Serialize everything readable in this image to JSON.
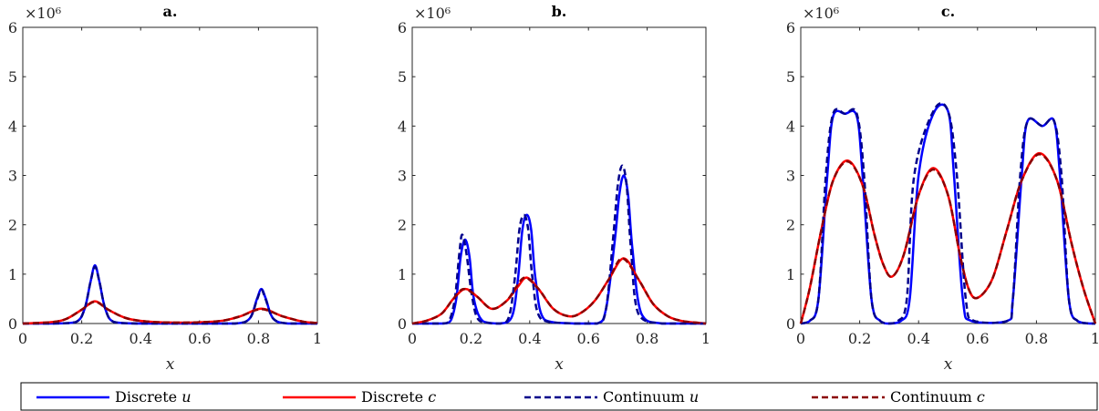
{
  "chart_data": [
    {
      "type": "line",
      "title": "a.",
      "xlabel": "x",
      "ylabel": "",
      "y_exponent": "×10⁶",
      "xlim": [
        0,
        1
      ],
      "ylim": [
        0,
        6000000
      ],
      "xticks": [
        "0",
        "0.2",
        "0.4",
        "0.6",
        "0.8",
        "1"
      ],
      "yticks": [
        "0",
        "1",
        "2",
        "3",
        "4",
        "5",
        "6"
      ],
      "grid": false,
      "series": [
        {
          "name": "Discrete u",
          "color": "#0000ff",
          "dash": "solid",
          "x": [
            0,
            0.1,
            0.18,
            0.21,
            0.23,
            0.245,
            0.26,
            0.28,
            0.31,
            0.4,
            0.6,
            0.72,
            0.77,
            0.795,
            0.81,
            0.825,
            0.85,
            0.9,
            1
          ],
          "y": [
            0,
            0,
            30000,
            300000,
            850000,
            1180000,
            850000,
            300000,
            30000,
            0,
            0,
            0,
            100000,
            500000,
            700000,
            500000,
            100000,
            0,
            0
          ]
        },
        {
          "name": "Discrete c",
          "color": "#ff0000",
          "dash": "solid",
          "x": [
            0,
            0.1,
            0.15,
            0.2,
            0.245,
            0.29,
            0.35,
            0.42,
            0.5,
            0.6,
            0.68,
            0.74,
            0.81,
            0.88,
            0.95,
            1
          ],
          "y": [
            0,
            30000,
            100000,
            280000,
            450000,
            280000,
            110000,
            40000,
            20000,
            25000,
            60000,
            150000,
            300000,
            150000,
            40000,
            10000
          ]
        },
        {
          "name": "Continuum u",
          "color": "#00008b",
          "dash": "dashed",
          "x": [
            0,
            0.1,
            0.18,
            0.21,
            0.23,
            0.245,
            0.26,
            0.28,
            0.31,
            0.4,
            0.6,
            0.72,
            0.77,
            0.795,
            0.81,
            0.825,
            0.85,
            0.9,
            1
          ],
          "y": [
            0,
            0,
            30000,
            300000,
            850000,
            1150000,
            850000,
            300000,
            30000,
            0,
            0,
            0,
            100000,
            480000,
            680000,
            480000,
            100000,
            0,
            0
          ]
        },
        {
          "name": "Continuum c",
          "color": "#8b0000",
          "dash": "dashed",
          "x": [
            0,
            0.1,
            0.15,
            0.2,
            0.245,
            0.29,
            0.35,
            0.42,
            0.5,
            0.6,
            0.68,
            0.74,
            0.81,
            0.88,
            0.95,
            1
          ],
          "y": [
            0,
            30000,
            100000,
            280000,
            440000,
            280000,
            110000,
            40000,
            20000,
            25000,
            60000,
            150000,
            290000,
            150000,
            40000,
            10000
          ]
        }
      ]
    },
    {
      "type": "line",
      "title": "b.",
      "xlabel": "x",
      "ylabel": "",
      "y_exponent": "×10⁶",
      "xlim": [
        0,
        1
      ],
      "ylim": [
        0,
        6000000
      ],
      "xticks": [
        "0",
        "0.2",
        "0.4",
        "0.6",
        "0.8",
        "1"
      ],
      "yticks": [
        "0",
        "1",
        "2",
        "3",
        "4",
        "5",
        "6"
      ],
      "grid": false,
      "series": [
        {
          "name": "Discrete u",
          "color": "#0000ff",
          "dash": "solid",
          "x": [
            0,
            0.1,
            0.13,
            0.15,
            0.165,
            0.18,
            0.195,
            0.21,
            0.24,
            0.3,
            0.34,
            0.36,
            0.375,
            0.39,
            0.405,
            0.42,
            0.45,
            0.55,
            0.63,
            0.66,
            0.69,
            0.705,
            0.72,
            0.735,
            0.75,
            0.78,
            0.85,
            1
          ],
          "y": [
            0,
            0,
            50000,
            500000,
            1350000,
            1700000,
            1350000,
            500000,
            50000,
            0,
            150000,
            900000,
            1900000,
            2200000,
            1900000,
            900000,
            80000,
            0,
            0,
            300000,
            1700000,
            2600000,
            3000000,
            2600000,
            1500000,
            200000,
            0,
            0
          ]
        },
        {
          "name": "Discrete c",
          "color": "#ff0000",
          "dash": "solid",
          "x": [
            0,
            0.05,
            0.1,
            0.14,
            0.18,
            0.22,
            0.27,
            0.32,
            0.36,
            0.39,
            0.43,
            0.48,
            0.53,
            0.57,
            0.62,
            0.67,
            0.72,
            0.77,
            0.82,
            0.87,
            0.92,
            1
          ],
          "y": [
            0,
            60000,
            200000,
            500000,
            700000,
            550000,
            300000,
            450000,
            750000,
            930000,
            700000,
            300000,
            150000,
            200000,
            450000,
            900000,
            1320000,
            900000,
            400000,
            150000,
            50000,
            0
          ]
        },
        {
          "name": "Continuum u",
          "color": "#00008b",
          "dash": "dashed",
          "x": [
            0,
            0.1,
            0.125,
            0.145,
            0.16,
            0.17,
            0.185,
            0.205,
            0.23,
            0.3,
            0.33,
            0.35,
            0.365,
            0.38,
            0.395,
            0.41,
            0.44,
            0.55,
            0.63,
            0.66,
            0.685,
            0.7,
            0.715,
            0.73,
            0.745,
            0.77,
            0.85,
            1
          ],
          "y": [
            0,
            0,
            50000,
            500000,
            1400000,
            1800000,
            1400000,
            500000,
            50000,
            0,
            150000,
            950000,
            1900000,
            2200000,
            1900000,
            900000,
            80000,
            0,
            0,
            300000,
            1800000,
            2800000,
            3200000,
            2800000,
            1500000,
            200000,
            0,
            0
          ]
        },
        {
          "name": "Continuum c",
          "color": "#8b0000",
          "dash": "dashed",
          "x": [
            0,
            0.05,
            0.1,
            0.14,
            0.175,
            0.22,
            0.27,
            0.32,
            0.355,
            0.385,
            0.43,
            0.48,
            0.53,
            0.57,
            0.62,
            0.67,
            0.715,
            0.77,
            0.82,
            0.87,
            0.92,
            1
          ],
          "y": [
            0,
            60000,
            200000,
            500000,
            700000,
            550000,
            300000,
            450000,
            750000,
            930000,
            700000,
            300000,
            150000,
            200000,
            450000,
            900000,
            1320000,
            900000,
            400000,
            150000,
            50000,
            0
          ]
        }
      ]
    },
    {
      "type": "line",
      "title": "c.",
      "xlabel": "x",
      "ylabel": "",
      "y_exponent": "×10⁶",
      "xlim": [
        0,
        1
      ],
      "ylim": [
        0,
        6000000
      ],
      "xticks": [
        "0",
        "0.2",
        "0.4",
        "0.6",
        "0.8",
        "1"
      ],
      "yticks": [
        "0",
        "1",
        "2",
        "3",
        "4",
        "5",
        "6"
      ],
      "grid": false,
      "series": [
        {
          "name": "Discrete u",
          "color": "#0000ff",
          "dash": "solid",
          "x": [
            0,
            0.03,
            0.06,
            0.09,
            0.11,
            0.15,
            0.19,
            0.21,
            0.24,
            0.27,
            0.3,
            0.34,
            0.37,
            0.4,
            0.45,
            0.5,
            0.52,
            0.55,
            0.58,
            0.7,
            0.72,
            0.75,
            0.77,
            0.82,
            0.86,
            0.88,
            0.91,
            0.94,
            0.98,
            1
          ],
          "y": [
            0,
            50000,
            500000,
            3000000,
            4200000,
            4250000,
            4200000,
            3000000,
            500000,
            50000,
            0,
            50000,
            500000,
            3000000,
            4250000,
            4300000,
            3000000,
            500000,
            50000,
            50000,
            500000,
            3000000,
            4100000,
            4000000,
            4100000,
            3000000,
            500000,
            50000,
            0,
            0
          ]
        },
        {
          "name": "Discrete c",
          "color": "#ff0000",
          "dash": "solid",
          "x": [
            0,
            0.03,
            0.07,
            0.11,
            0.16,
            0.21,
            0.25,
            0.28,
            0.31,
            0.35,
            0.4,
            0.45,
            0.5,
            0.54,
            0.57,
            0.6,
            0.65,
            0.7,
            0.75,
            0.81,
            0.87,
            0.92,
            0.96,
            1
          ],
          "y": [
            0,
            700000,
            1900000,
            2900000,
            3300000,
            2800000,
            1800000,
            1200000,
            950000,
            1400000,
            2600000,
            3150000,
            2600000,
            1400000,
            700000,
            520000,
            900000,
            1900000,
            2900000,
            3450000,
            2900000,
            1600000,
            700000,
            0
          ]
        },
        {
          "name": "Continuum u",
          "color": "#00008b",
          "dash": "dashed",
          "x": [
            0,
            0.03,
            0.06,
            0.085,
            0.11,
            0.15,
            0.19,
            0.215,
            0.24,
            0.27,
            0.3,
            0.33,
            0.36,
            0.385,
            0.45,
            0.5,
            0.53,
            0.56,
            0.59,
            0.7,
            0.72,
            0.745,
            0.77,
            0.82,
            0.86,
            0.885,
            0.91,
            0.94,
            0.98,
            1
          ],
          "y": [
            0,
            50000,
            500000,
            3000000,
            4250000,
            4250000,
            4250000,
            3000000,
            500000,
            50000,
            0,
            50000,
            500000,
            3000000,
            4300000,
            4300000,
            3000000,
            500000,
            50000,
            50000,
            500000,
            3000000,
            4100000,
            4000000,
            4100000,
            3000000,
            500000,
            50000,
            0,
            0
          ]
        },
        {
          "name": "Continuum c",
          "color": "#8b0000",
          "dash": "dashed",
          "x": [
            0,
            0.03,
            0.07,
            0.11,
            0.16,
            0.21,
            0.25,
            0.28,
            0.31,
            0.35,
            0.4,
            0.45,
            0.5,
            0.54,
            0.57,
            0.6,
            0.65,
            0.7,
            0.75,
            0.81,
            0.87,
            0.92,
            0.96,
            1
          ],
          "y": [
            0,
            700000,
            1900000,
            2900000,
            3280000,
            2800000,
            1800000,
            1200000,
            950000,
            1400000,
            2600000,
            3120000,
            2600000,
            1400000,
            700000,
            520000,
            900000,
            1900000,
            2900000,
            3430000,
            2900000,
            1600000,
            700000,
            0
          ]
        }
      ]
    }
  ],
  "legend": {
    "position": "bottom",
    "items": [
      {
        "label": "Discrete ",
        "symbol": "u",
        "color": "#0000ff",
        "dash": "solid"
      },
      {
        "label": "Discrete ",
        "symbol": "c",
        "color": "#ff0000",
        "dash": "solid"
      },
      {
        "label": "Continuum ",
        "symbol": "u",
        "color": "#00008b",
        "dash": "dashed"
      },
      {
        "label": "Continuum ",
        "symbol": "c",
        "color": "#8b0000",
        "dash": "dashed"
      }
    ]
  }
}
